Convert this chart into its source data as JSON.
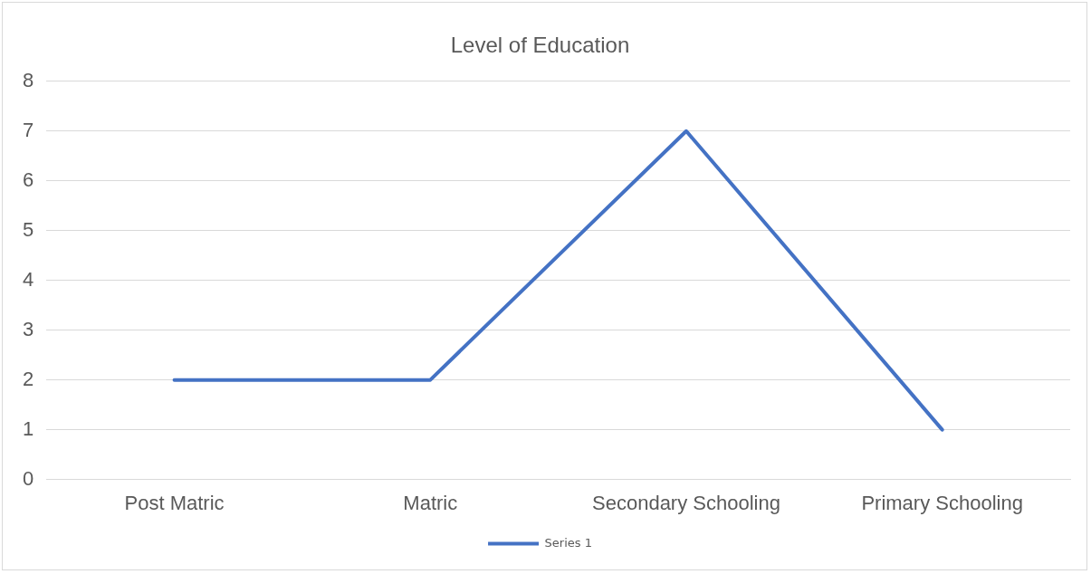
{
  "chart_data": {
    "type": "line",
    "title": "Level of Education",
    "categories": [
      "Post Matric",
      "Matric",
      "Secondary Schooling",
      "Primary Schooling"
    ],
    "series": [
      {
        "name": "Series 1",
        "color": "#4472c4",
        "values": [
          2,
          2,
          7,
          1
        ]
      }
    ],
    "ylim": [
      0,
      8
    ],
    "yticks": [
      0,
      1,
      2,
      3,
      4,
      5,
      6,
      7,
      8
    ],
    "grid": "y",
    "legend": "bottom",
    "marker": "none"
  }
}
